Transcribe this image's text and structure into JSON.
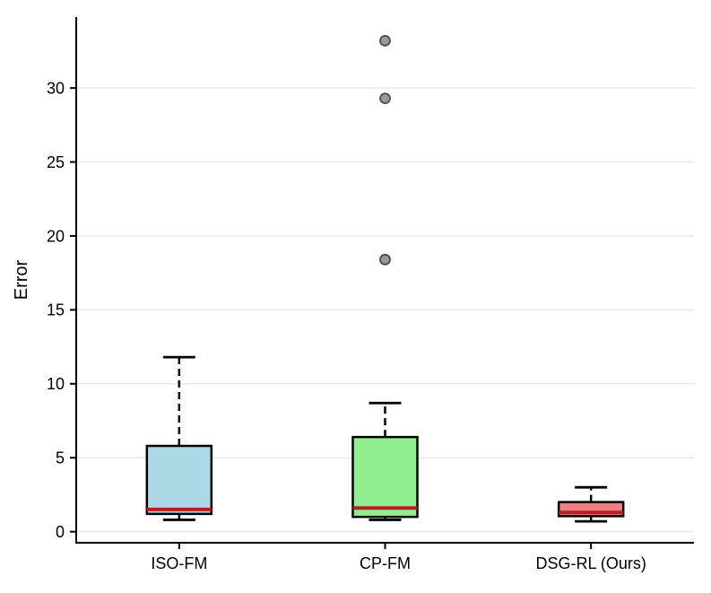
{
  "chart_data": {
    "type": "box",
    "title": "",
    "xlabel": "",
    "ylabel": "Error",
    "categories": [
      "ISO-FM",
      "CP-FM",
      "DSG-RL (Ours)"
    ],
    "yticks": [
      0,
      5,
      10,
      15,
      20,
      25,
      30
    ],
    "ylim": [
      -0.75,
      34.8
    ],
    "grid": "horizontal",
    "legend": "none",
    "boxes": [
      {
        "label": "ISO-FM",
        "whisker_low": 0.8,
        "q1": 1.2,
        "median": 1.5,
        "q3": 5.8,
        "whisker_high": 11.8,
        "outliers": [],
        "fill_color": "#ADD8E6"
      },
      {
        "label": "CP-FM",
        "whisker_low": 0.8,
        "q1": 1.0,
        "median": 1.6,
        "q3": 6.4,
        "whisker_high": 8.7,
        "outliers": [
          18.4,
          29.3,
          33.2
        ],
        "fill_color": "#90EE90"
      },
      {
        "label": "DSG-RL (Ours)",
        "whisker_low": 0.7,
        "q1": 1.05,
        "median": 1.3,
        "q3": 2.0,
        "whisker_high": 3.0,
        "outliers": [],
        "fill_color": "#F08080"
      }
    ],
    "style": {
      "median_color": "#B22222",
      "box_edge_color": "#000000",
      "whisker_color": "#000000",
      "outlier_fill": "#999999",
      "outlier_edge": "#4d4d4d",
      "grid_color": "#e8e8e8",
      "axis_color": "#000000",
      "background": "#ffffff"
    }
  }
}
